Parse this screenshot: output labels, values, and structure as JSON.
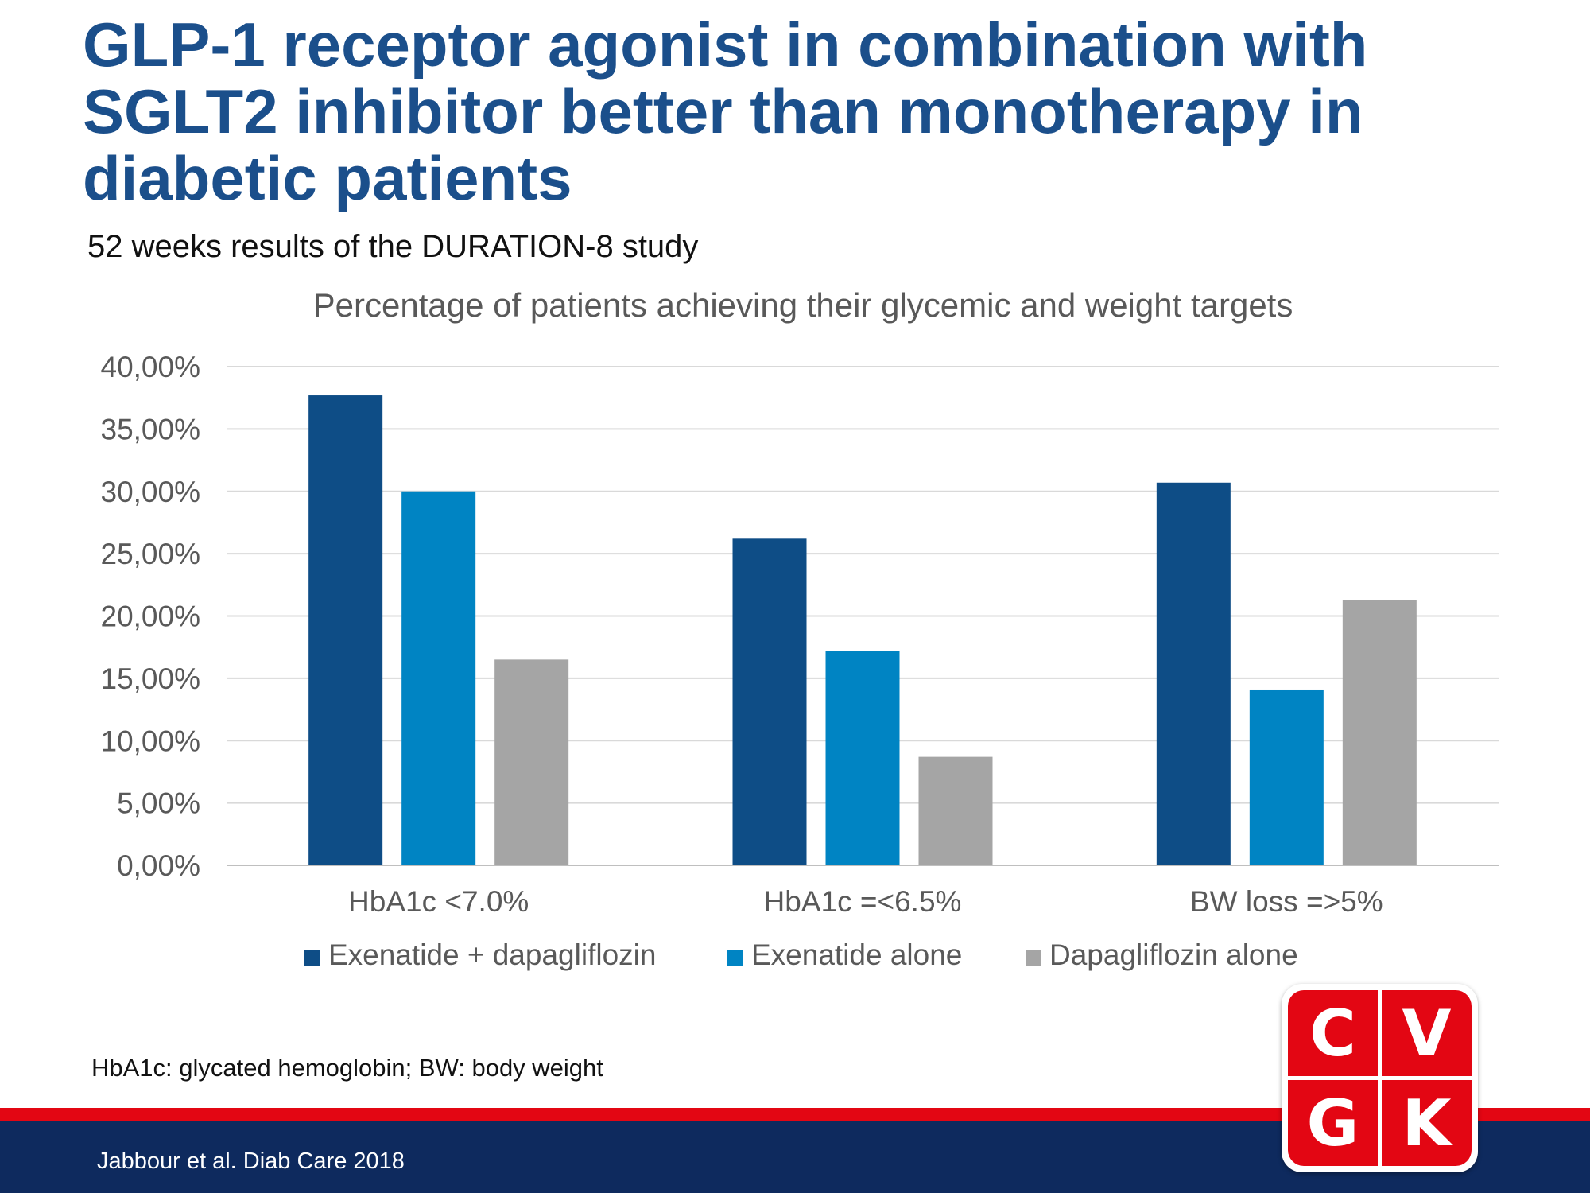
{
  "slide": {
    "title": "GLP-1 receptor agonist in combination with SGLT2 inhibitor better than monotherapy in diabetic patients",
    "subtitle": "52 weeks results of the DURATION-8 study",
    "footnote": "HbA1c: glycated hemoglobin; BW: body weight",
    "citation": "Jabbour et al. Diab Care 2018"
  },
  "logo": {
    "letters": [
      "C",
      "V",
      "G",
      "K"
    ],
    "color": "#e30613"
  },
  "chart_data": {
    "type": "bar",
    "title": "Percentage of patients achieving their glycemic and weight targets",
    "categories": [
      "HbA1c <7.0%",
      "HbA1c =<6.5%",
      "BW loss =>5%"
    ],
    "series": [
      {
        "name": "Exenatide + dapagliflozin",
        "color": "#0e4d86",
        "values": [
          37.7,
          26.2,
          30.7
        ]
      },
      {
        "name": "Exenatide alone",
        "color": "#0084c3",
        "values": [
          30.0,
          17.2,
          14.1
        ]
      },
      {
        "name": "Dapagliflozin alone",
        "color": "#a5a5a5",
        "values": [
          16.5,
          8.7,
          21.3
        ]
      }
    ],
    "ylim": [
      0,
      40
    ],
    "yticks": [
      "0,00%",
      "5,00%",
      "10,00%",
      "15,00%",
      "20,00%",
      "25,00%",
      "30,00%",
      "35,00%",
      "40,00%"
    ],
    "grid": true,
    "legend_position": "bottom"
  }
}
